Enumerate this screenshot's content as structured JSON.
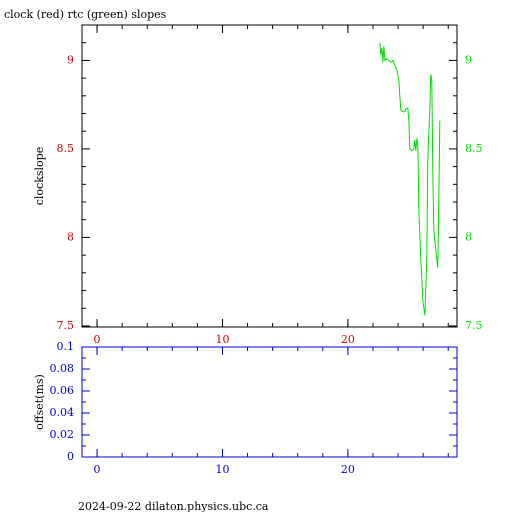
{
  "chart_data": [
    {
      "type": "line",
      "title": "clock (red) rtc (green) slopes",
      "ylabel": "clockslope",
      "x": [
        22.55,
        22.63,
        22.71,
        22.79,
        22.87,
        22.95,
        23.11,
        23.27,
        23.43,
        23.59,
        23.75,
        23.9,
        24.06,
        24.14,
        24.22,
        24.38,
        24.54,
        24.62,
        24.78,
        24.86,
        24.94,
        25.1,
        25.26,
        25.34,
        25.42,
        25.5,
        25.58,
        25.66,
        25.82,
        25.98,
        26.14,
        26.29,
        26.37,
        26.53,
        26.61,
        26.69,
        26.77,
        26.85,
        27.01,
        27.17,
        27.25,
        27.33
      ],
      "series": [
        {
          "name": "rtc",
          "color": "#00dd00",
          "axis": "y2",
          "values": [
            9.1,
            9.03,
            9.07,
            8.99,
            9.08,
            9.0,
            9.01,
            9.0,
            8.99,
            9.0,
            8.97,
            8.95,
            8.89,
            8.8,
            8.72,
            8.71,
            8.71,
            8.73,
            8.73,
            8.66,
            8.5,
            8.49,
            8.5,
            8.55,
            8.49,
            8.56,
            8.52,
            8.15,
            7.87,
            7.64,
            7.56,
            7.87,
            8.44,
            8.72,
            8.92,
            8.89,
            8.38,
            8.04,
            7.93,
            7.83,
            8.21,
            8.66
          ]
        }
      ],
      "xlim": [
        -1.2,
        28.7
      ],
      "xticks": [
        0,
        10,
        20
      ],
      "xminorticks": [
        0,
        2,
        4,
        6,
        8,
        10,
        12,
        14,
        16,
        18,
        20,
        22,
        24,
        26,
        28
      ],
      "ylim": [
        7.494,
        9.2
      ],
      "yticks": [
        7.5,
        8,
        8.5,
        9
      ],
      "yminorticks": [
        7.6,
        7.7,
        7.8,
        7.9,
        8.1,
        8.2,
        8.3,
        8.4,
        8.6,
        8.7,
        8.8,
        8.9,
        9.1
      ],
      "y2lim": [
        7.494,
        9.2
      ],
      "y2ticks": [
        7.5,
        8,
        8.5,
        9
      ],
      "xtick_color": "#cc0000",
      "ytick_color": "#cc0000",
      "y2tick_color": "#00dd00",
      "frame_color": "#000000"
    },
    {
      "type": "line",
      "ylabel": "offset(ms)",
      "x": [],
      "series": [],
      "xlim": [
        -1.2,
        28.7
      ],
      "xticks": [
        0,
        10,
        20
      ],
      "xminorticks": [
        0,
        2,
        4,
        6,
        8,
        10,
        12,
        14,
        16,
        18,
        20,
        22,
        24,
        26,
        28
      ],
      "ylim": [
        0,
        0.1
      ],
      "yticks": [
        0,
        0.02,
        0.04,
        0.06,
        0.08,
        0.1
      ],
      "yminorticks": [
        0.01,
        0.03,
        0.05,
        0.07,
        0.09
      ],
      "xtick_color": "#0000cc",
      "ytick_color": "#0000cc",
      "frame_color": "#0000cc"
    }
  ],
  "footer": "2024-09-22 dilaton.physics.ubc.ca"
}
